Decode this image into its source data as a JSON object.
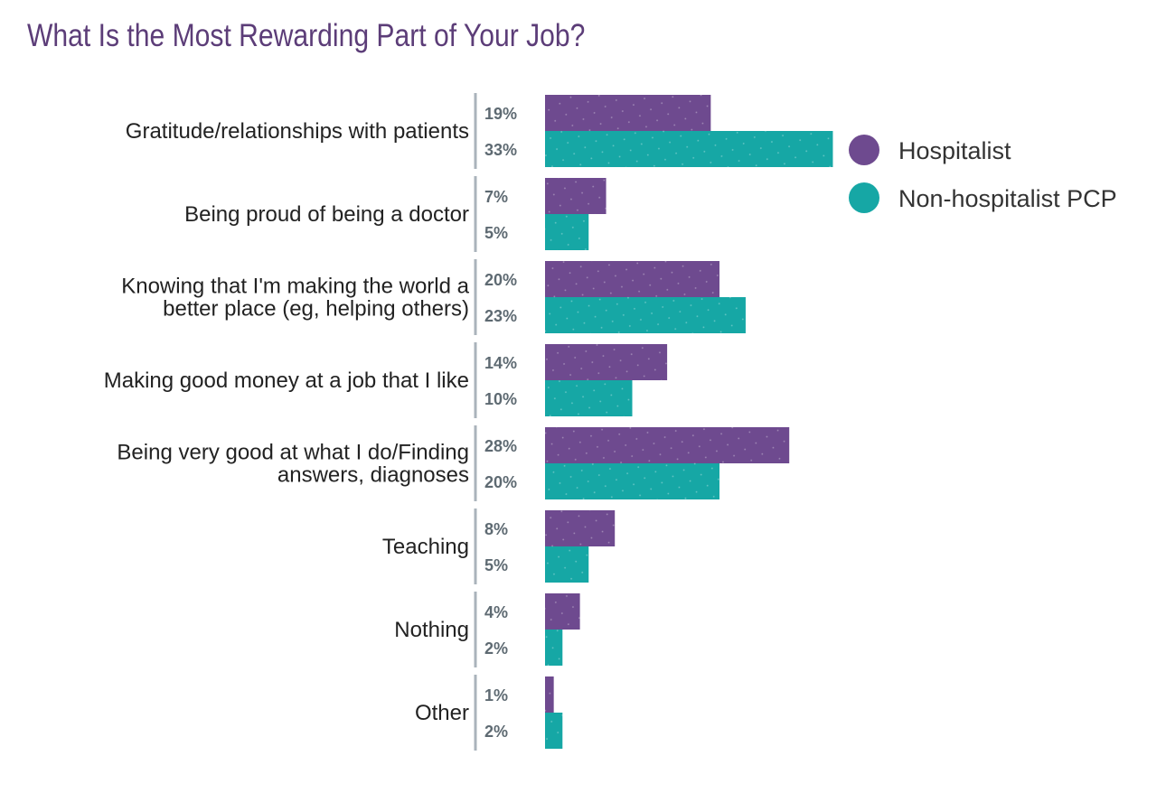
{
  "chart_data": {
    "type": "bar",
    "orientation": "horizontal",
    "title": "What Is the Most Rewarding Part of Your Job?",
    "unit": "%",
    "categories": [
      [
        "Gratitude/relationships with patients"
      ],
      [
        "Being proud of being a doctor"
      ],
      [
        "Knowing that I'm making the world a",
        "better place (eg, helping others)"
      ],
      [
        "Making good money at a job that I like"
      ],
      [
        "Being very good at what I do/Finding",
        "answers, diagnoses"
      ],
      [
        "Teaching"
      ],
      [
        "Nothing"
      ],
      [
        "Other"
      ]
    ],
    "series": [
      {
        "name": "Hospitalist",
        "color": "#6e4a8f",
        "values": [
          19,
          7,
          20,
          14,
          28,
          8,
          4,
          1
        ]
      },
      {
        "name": "Non-hospitalist PCP",
        "color": "#16a7a5",
        "values": [
          33,
          5,
          23,
          10,
          20,
          5,
          2,
          2
        ]
      }
    ],
    "legend_position": "right",
    "grid": false
  }
}
